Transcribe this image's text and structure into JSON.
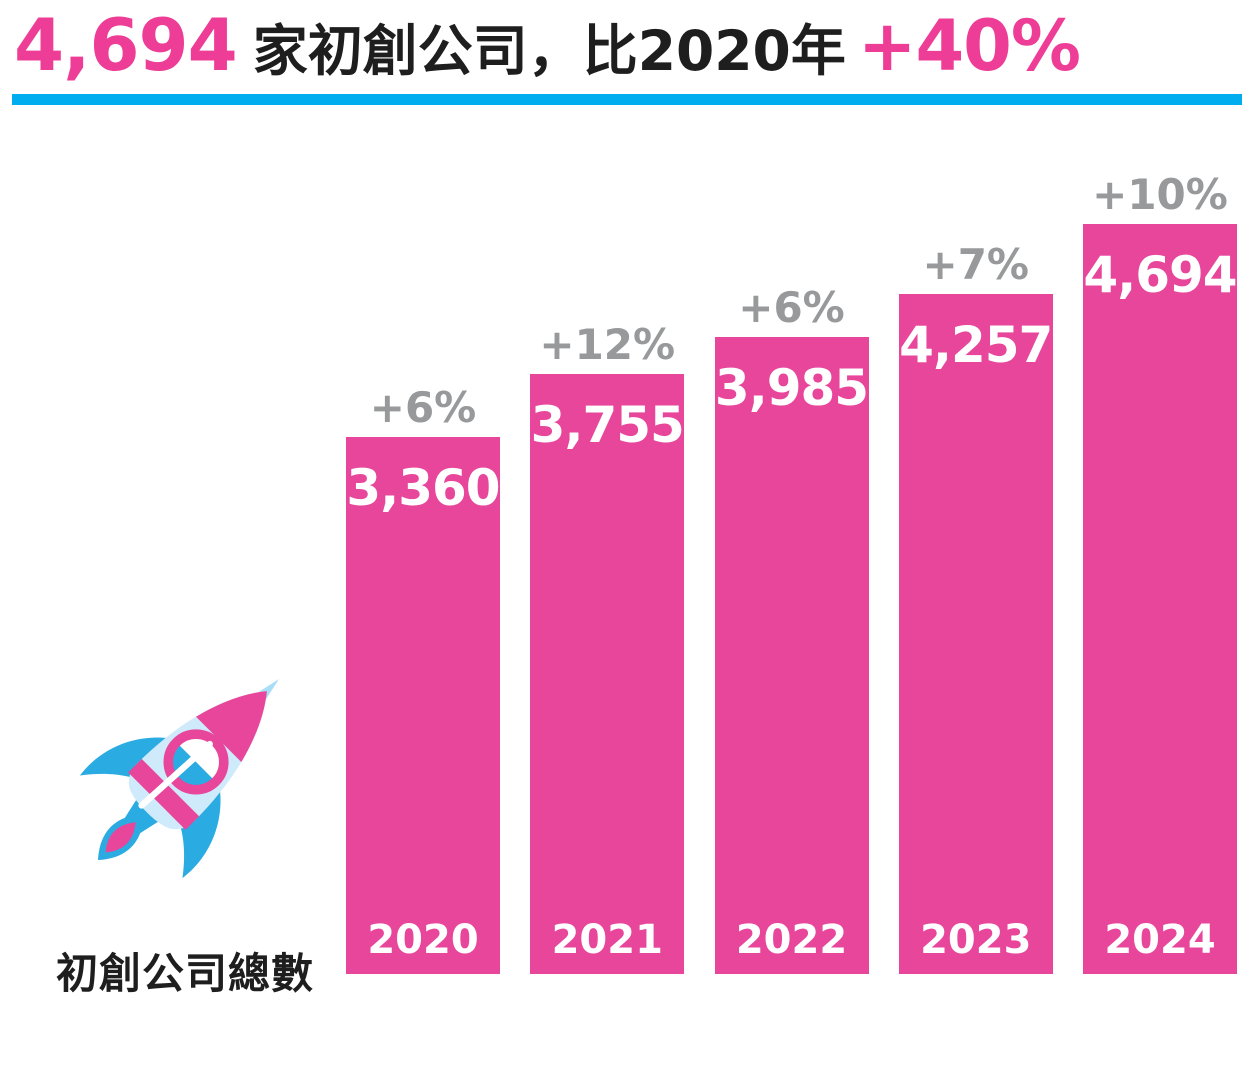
{
  "title": {
    "highlight_value": "4,694",
    "middle": "家初創公司，比2020年",
    "highlight_pct": "+40%"
  },
  "caption": "初創公司總數",
  "colors": {
    "title_pink": "#ee3d96",
    "bar_pink": "#e7469b",
    "pct_gray": "#97999b",
    "divider_blue": "#00aeef",
    "text_black": "#1e1e1e",
    "rocket_blue": "#2aabe2",
    "rocket_pale_blue": "#cfeafa"
  },
  "chart_data": {
    "type": "bar",
    "title": "4,694 家初創公司，比2020年 +40%",
    "xlabel": "",
    "ylabel": "",
    "categories": [
      "2020",
      "2021",
      "2022",
      "2023",
      "2024"
    ],
    "values": [
      3360,
      3755,
      3985,
      4257,
      4694
    ],
    "value_labels": [
      "3,360",
      "3,755",
      "3,985",
      "4,257",
      "4,694"
    ],
    "pct_labels": [
      "+6%",
      "+12%",
      "+6%",
      "+7%",
      "+10%"
    ],
    "series_name": "初創公司總數",
    "ylim": [
      0,
      4694
    ],
    "grid": false,
    "legend_position": "none",
    "bar_color": "#e7469b",
    "value_label_position": "inside-top",
    "category_label_position": "inside-bottom",
    "pct_label_position": "above-bar"
  }
}
